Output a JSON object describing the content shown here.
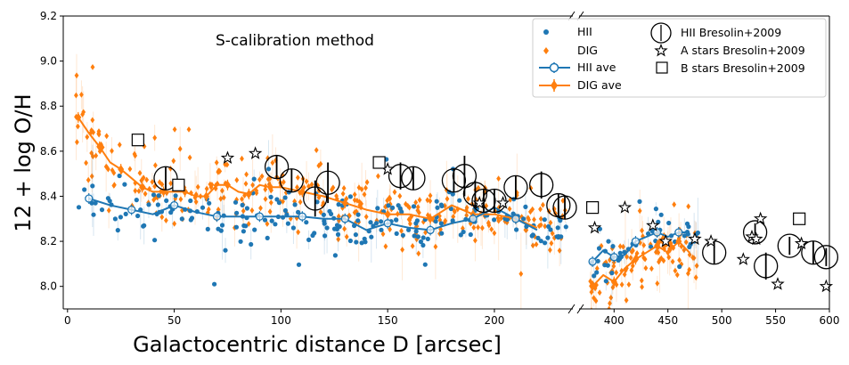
{
  "chart_data": {
    "type": "scatter",
    "annotation": "S-calibration method",
    "xlabel": "Galactocentric distance D [arcsec]",
    "ylabel": "12 + log O/H",
    "ylim": [
      7.9,
      9.2
    ],
    "yticks": [
      8.0,
      8.2,
      8.4,
      8.6,
      8.8,
      9.0,
      9.2
    ],
    "broken_x_axis": true,
    "x_panels": [
      {
        "xlim": [
          -2,
          238
        ],
        "xticks": [
          0,
          50,
          100,
          150,
          200
        ]
      },
      {
        "xlim": [
          365,
          600
        ],
        "xticks": [
          400,
          450,
          500,
          550,
          600
        ]
      }
    ],
    "colors": {
      "hii": "#1f77b4",
      "dig": "#ff7f0e",
      "bresolin": "#000000"
    },
    "legend": {
      "position": "top-right",
      "entries": [
        "HII",
        "DIG",
        "HII ave",
        "DIG ave",
        "HII Bresolin+2009",
        "A stars Bresolin+2009",
        "B stars Bresolin+2009"
      ]
    },
    "series": [
      {
        "name": "HII ave",
        "x": [
          10,
          20,
          30,
          40,
          50,
          60,
          70,
          80,
          90,
          100,
          110,
          120,
          130,
          140,
          150,
          160,
          170,
          180,
          190,
          200,
          210,
          220,
          380,
          390,
          400,
          410,
          420,
          430,
          440,
          450,
          460,
          470
        ],
        "y": [
          8.39,
          8.36,
          8.34,
          8.32,
          8.36,
          8.33,
          8.31,
          8.31,
          8.31,
          8.31,
          8.31,
          8.3,
          8.3,
          8.25,
          8.28,
          8.26,
          8.25,
          8.28,
          8.3,
          8.35,
          8.3,
          8.25,
          8.11,
          8.16,
          8.13,
          8.14,
          8.2,
          8.22,
          8.24,
          8.22,
          8.24,
          8.24
        ]
      },
      {
        "name": "DIG ave",
        "x": [
          5,
          10,
          15,
          20,
          25,
          30,
          35,
          40,
          45,
          50,
          55,
          60,
          65,
          70,
          75,
          80,
          85,
          90,
          95,
          100,
          110,
          120,
          130,
          140,
          150,
          160,
          170,
          180,
          190,
          200,
          210,
          220,
          380,
          390,
          400,
          410,
          420,
          430,
          440,
          450,
          460,
          470
        ],
        "y": [
          8.75,
          8.68,
          8.62,
          8.55,
          8.52,
          8.48,
          8.44,
          8.42,
          8.42,
          8.42,
          8.42,
          8.4,
          8.4,
          8.45,
          8.45,
          8.42,
          8.41,
          8.45,
          8.44,
          8.44,
          8.42,
          8.4,
          8.37,
          8.34,
          8.32,
          8.32,
          8.3,
          8.36,
          8.32,
          8.32,
          8.3,
          8.26,
          8.0,
          8.05,
          8.02,
          8.08,
          8.12,
          8.15,
          8.18,
          8.15,
          8.2,
          8.15
        ]
      },
      {
        "name": "HII Bresolin+2009",
        "x": [
          46,
          98,
          105,
          116,
          122,
          156,
          162,
          181,
          186,
          191,
          195,
          200,
          210,
          222,
          230,
          233,
          493,
          531,
          541,
          563,
          585,
          597
        ],
        "y": [
          8.48,
          8.53,
          8.47,
          8.39,
          8.46,
          8.49,
          8.48,
          8.47,
          8.49,
          8.41,
          8.38,
          8.38,
          8.44,
          8.45,
          8.36,
          8.35,
          8.15,
          8.24,
          8.09,
          8.18,
          8.15,
          8.13
        ],
        "yerr": [
          0.05,
          0.05,
          0.05,
          0.08,
          0.09,
          0.06,
          0.05,
          0.05,
          0.09,
          0.06,
          0.05,
          0.05,
          0.05,
          0.06,
          0.05,
          0.05,
          0.05,
          0.04,
          0.06,
          0.04,
          0.05,
          0.04
        ]
      },
      {
        "name": "A stars Bresolin+2009",
        "x": [
          75,
          88,
          150,
          193,
          204,
          382,
          410,
          436,
          448,
          475,
          490,
          520,
          528,
          532,
          536,
          552,
          574,
          597
        ],
        "y": [
          8.57,
          8.59,
          8.52,
          8.37,
          8.37,
          8.26,
          8.35,
          8.27,
          8.2,
          8.21,
          8.2,
          8.12,
          8.22,
          8.21,
          8.3,
          8.01,
          8.19,
          8.0
        ]
      },
      {
        "name": "B stars Bresolin+2009",
        "x": [
          33,
          52,
          146,
          380,
          572
        ],
        "y": [
          8.65,
          8.45,
          8.55,
          8.35,
          8.3
        ]
      }
    ],
    "scatter_generation": {
      "description": "Individual HII and DIG points drawn as a dense cloud following the ave trends",
      "hii_count": 260,
      "dig_count": 470,
      "seed": 7
    }
  }
}
